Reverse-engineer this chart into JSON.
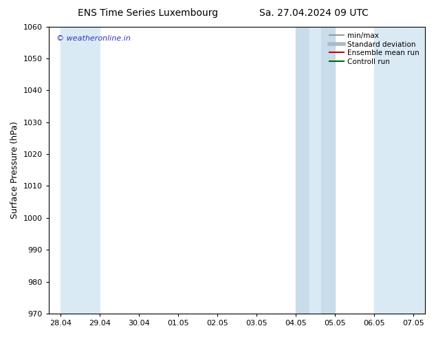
{
  "title_left": "ENS Time Series Luxembourg",
  "title_right": "Sa. 27.04.2024 09 UTC",
  "ylabel": "Surface Pressure (hPa)",
  "ylim": [
    970,
    1060
  ],
  "yticks": [
    970,
    980,
    990,
    1000,
    1010,
    1020,
    1030,
    1040,
    1050,
    1060
  ],
  "x_labels": [
    "28.04",
    "29.04",
    "30.04",
    "01.05",
    "02.05",
    "03.05",
    "04.05",
    "05.05",
    "06.05",
    "07.05"
  ],
  "x_positions": [
    0,
    1,
    2,
    3,
    4,
    5,
    6,
    7,
    8,
    9
  ],
  "band_color": "#daeaf5",
  "watermark": "© weatheronline.in",
  "watermark_color": "#3333bb",
  "legend_items": [
    {
      "label": "min/max",
      "color": "#999999",
      "lw": 1.5
    },
    {
      "label": "Standard deviation",
      "color": "#aabbcc",
      "lw": 4
    },
    {
      "label": "Ensemble mean run",
      "color": "#cc0000",
      "lw": 1.5
    },
    {
      "label": "Controll run",
      "color": "#006600",
      "lw": 1.5
    }
  ],
  "background_color": "#ffffff",
  "title_fontsize": 10,
  "tick_fontsize": 8,
  "ylabel_fontsize": 9,
  "watermark_fontsize": 8,
  "legend_fontsize": 7.5
}
